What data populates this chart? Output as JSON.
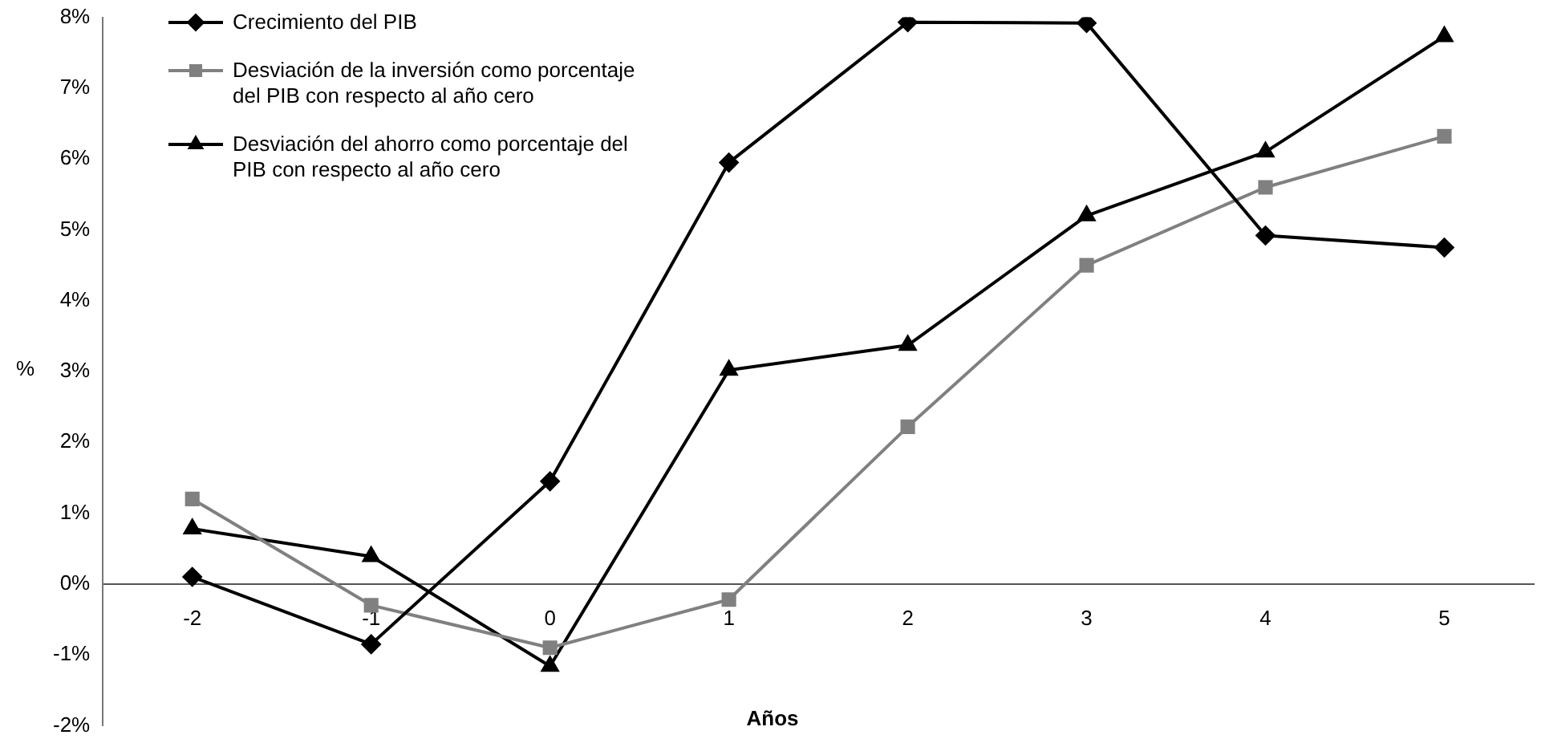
{
  "chart_data": {
    "type": "line",
    "xlabel": "Años",
    "ylabel": "%",
    "categories": [
      "-2",
      "-1",
      "0",
      "1",
      "2",
      "3",
      "4",
      "5"
    ],
    "series": [
      {
        "name": "Crecimiento del PIB",
        "color": "#000000",
        "marker": "diamond",
        "values": [
          0.1,
          -0.85,
          1.45,
          5.95,
          7.93,
          7.92,
          4.92,
          4.75
        ]
      },
      {
        "name": "Desviación de la inversión como porcentaje del PIB con respecto al año cero",
        "color": "#808080",
        "marker": "square",
        "values": [
          1.2,
          -0.3,
          -0.9,
          -0.22,
          2.22,
          4.5,
          5.6,
          6.32
        ]
      },
      {
        "name": "Desviación del ahorro como porcentaje del PIB con respecto al año cero",
        "color": "#000000",
        "marker": "triangle",
        "values": [
          0.78,
          0.39,
          -1.16,
          3.02,
          3.37,
          5.2,
          6.1,
          7.73
        ]
      }
    ],
    "ylim": [
      -2,
      8
    ],
    "yticks": [
      {
        "value": -2,
        "label": "-2%"
      },
      {
        "value": -1,
        "label": "-1%"
      },
      {
        "value": 0,
        "label": "0%"
      },
      {
        "value": 1,
        "label": "1%"
      },
      {
        "value": 2,
        "label": "2%"
      },
      {
        "value": 3,
        "label": "3%"
      },
      {
        "value": 4,
        "label": "4%"
      },
      {
        "value": 5,
        "label": "5%"
      },
      {
        "value": 6,
        "label": "6%"
      },
      {
        "value": 7,
        "label": "7%"
      },
      {
        "value": 8,
        "label": "8%"
      }
    ],
    "grid": false,
    "legend": "top left",
    "line_style": "solid"
  }
}
